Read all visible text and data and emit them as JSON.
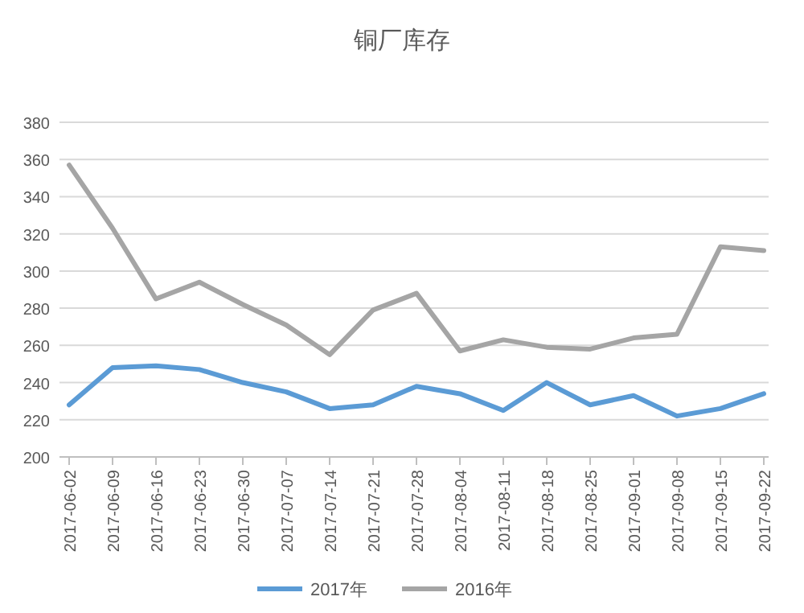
{
  "chart_data": {
    "type": "line",
    "title": "铜厂库存",
    "categories": [
      "2017-06-02",
      "2017-06-09",
      "2017-06-16",
      "2017-06-23",
      "2017-06-30",
      "2017-07-07",
      "2017-07-14",
      "2017-07-21",
      "2017-07-28",
      "2017-08-04",
      "2017-08-11",
      "2017-08-18",
      "2017-08-25",
      "2017-09-01",
      "2017-09-08",
      "2017-09-15",
      "2017-09-22"
    ],
    "series": [
      {
        "name": "2017年",
        "color": "#5b9bd5",
        "values": [
          228,
          248,
          249,
          247,
          240,
          235,
          226,
          228,
          238,
          234,
          225,
          240,
          228,
          233,
          222,
          226,
          234
        ]
      },
      {
        "name": "2016年",
        "color": "#a5a5a5",
        "values": [
          357,
          323,
          285,
          294,
          282,
          271,
          255,
          279,
          288,
          257,
          263,
          259,
          258,
          264,
          266,
          313,
          311
        ]
      }
    ],
    "ylim": [
      200,
      380
    ],
    "yticks": [
      200,
      220,
      240,
      260,
      280,
      300,
      320,
      340,
      360,
      380
    ],
    "grid": "y",
    "legend": "bottom"
  }
}
